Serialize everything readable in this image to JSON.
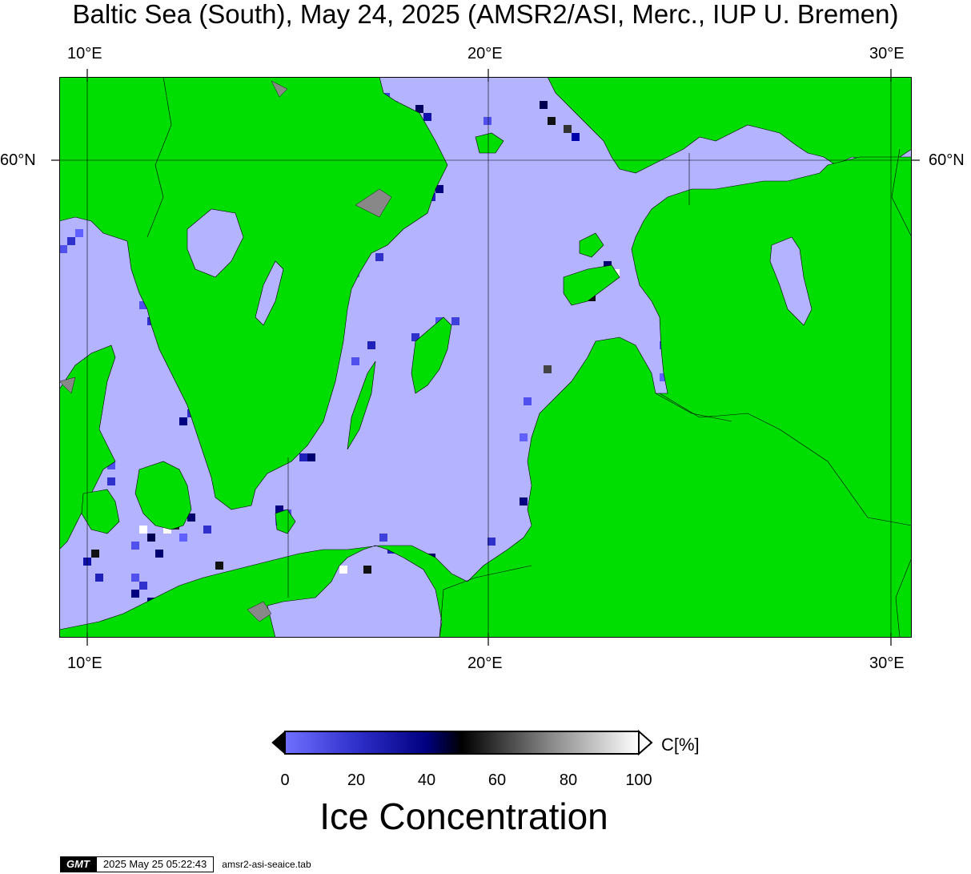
{
  "title": "Baltic Sea (South), May 24, 2025 (AMSR2/ASI, Merc., IUP U. Bremen)",
  "map": {
    "lon_ticks": [
      "10°E",
      "20°E",
      "30°E"
    ],
    "lat_ticks": [
      "60°N"
    ],
    "colors": {
      "land": "#00dd00",
      "open_water": "#b3b3ff",
      "grid": "#000000"
    }
  },
  "colorbar": {
    "unit_label": "C[%]",
    "ticks": [
      "0",
      "20",
      "40",
      "60",
      "80",
      "100"
    ],
    "title": "Ice Concentration",
    "color_stops": [
      "#7070ff",
      "#0000aa",
      "#000000",
      "#888888",
      "#ffffff"
    ]
  },
  "footer": {
    "logo": "GMT",
    "timestamp": "2025 May 25 05:22:43",
    "filename": "amsr2-asi-seaice.tab"
  }
}
